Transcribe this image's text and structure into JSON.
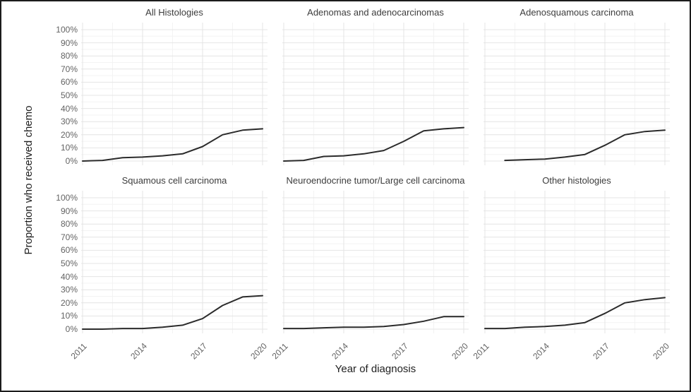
{
  "chart_data": {
    "type": "line",
    "xlabel": "Year of diagnosis",
    "ylabel": "Proportion who received chemo",
    "xlim": [
      2011,
      2020
    ],
    "ylim": [
      0,
      100
    ],
    "x_ticks": [
      2011,
      2014,
      2017,
      2020
    ],
    "x_tick_labels": [
      "2011",
      "2014",
      "2017",
      "2020"
    ],
    "x_minor_ticks": [
      2012.5,
      2015.5,
      2018.5
    ],
    "y_ticks": [
      0,
      10,
      20,
      30,
      40,
      50,
      60,
      70,
      80,
      90,
      100
    ],
    "y_tick_labels": [
      "0%",
      "10%",
      "20%",
      "30%",
      "40%",
      "50%",
      "60%",
      "70%",
      "80%",
      "90%",
      "100%"
    ],
    "y_unit": "percent",
    "grid": true,
    "legend": "none",
    "facets": [
      {
        "title": "All Histologies",
        "x": [
          2011,
          2012,
          2013,
          2014,
          2015,
          2016,
          2017,
          2018,
          2019,
          2020
        ],
        "values": [
          0,
          0.5,
          2.5,
          3,
          4,
          5.5,
          11,
          20,
          23.5,
          24.5
        ]
      },
      {
        "title": "Adenomas and adenocarcinomas",
        "x": [
          2011,
          2012,
          2013,
          2014,
          2015,
          2016,
          2017,
          2018,
          2019,
          2020
        ],
        "values": [
          0,
          0.5,
          3.5,
          4,
          5.5,
          8,
          15,
          23,
          24.5,
          25.5
        ]
      },
      {
        "title": "Adenosquamous carcinoma",
        "x": [
          2012,
          2013,
          2014,
          2015,
          2016,
          2017,
          2018,
          2019,
          2020
        ],
        "values": [
          0.5,
          1,
          1.5,
          3,
          5,
          12,
          20,
          22.5,
          23.5
        ]
      },
      {
        "title": "Squamous cell carcinoma",
        "x": [
          2011,
          2012,
          2013,
          2014,
          2015,
          2016,
          2017,
          2018,
          2019,
          2020
        ],
        "values": [
          0,
          0,
          0.5,
          0.5,
          1.5,
          3,
          8,
          18,
          24.5,
          25.5
        ]
      },
      {
        "title": "Neuroendocrine tumor/Large cell carcinoma",
        "x": [
          2011,
          2012,
          2013,
          2014,
          2015,
          2016,
          2017,
          2018,
          2019,
          2020
        ],
        "values": [
          0.5,
          0.5,
          1,
          1.5,
          1.5,
          2,
          3.5,
          6,
          9.5,
          9.5
        ]
      },
      {
        "title": "Other histologies",
        "x": [
          2011,
          2012,
          2013,
          2014,
          2015,
          2016,
          2017,
          2018,
          2019,
          2020
        ],
        "values": [
          0.5,
          0.5,
          1.5,
          2,
          3,
          5,
          12,
          20,
          22.5,
          24
        ]
      }
    ]
  },
  "colors": {
    "line": "#2b2b2b",
    "grid_major": "#e4e4e4",
    "grid_minor": "#f3f3f3",
    "tick_text": "#636363",
    "facet_title_text": "#3c3c3c",
    "axis_title_text": "#1f1f1f",
    "background": "#ffffff",
    "border": "#1c1c1c"
  }
}
